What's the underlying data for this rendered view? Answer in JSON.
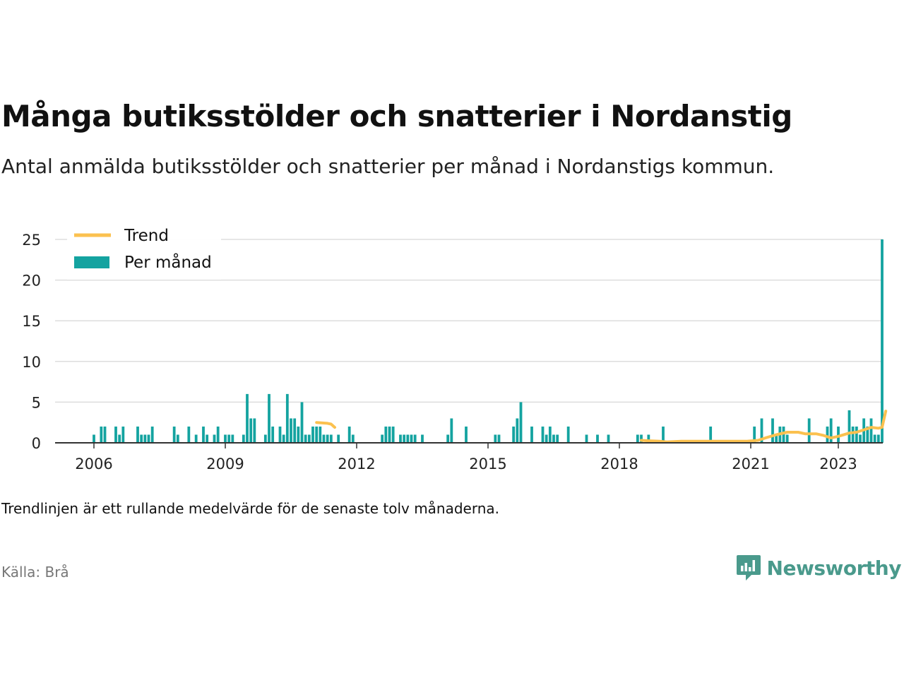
{
  "title": "Många butiksstölder och snatterier i Nordanstig",
  "subtitle": "Antal anmälda butiksstölder och snatterier per månad i Nordanstigs kommun.",
  "note": "Trendlinjen är ett rullande medelvärde för de senaste tolv månaderna.",
  "source": "Källa: Brå",
  "brand": {
    "name": "Newsworthy",
    "icon": "newsworthy-logo-icon",
    "color": "#4a9a8c"
  },
  "colors": {
    "bars": "#14a3a0",
    "trend": "#fbc14f",
    "grid": "#dddddd",
    "axis": "#333333"
  },
  "chart_data": {
    "type": "bar",
    "xlabel": "",
    "ylabel": "",
    "ylim": [
      0,
      25
    ],
    "yticks": [
      0,
      5,
      10,
      15,
      20,
      25
    ],
    "xticks": [
      "2006",
      "2009",
      "2012",
      "2015",
      "2018",
      "2021",
      "2023"
    ],
    "grid": true,
    "legend": {
      "position": "top-left",
      "entries": [
        "Trend",
        "Per månad"
      ]
    },
    "series": [
      {
        "name": "Per månad",
        "type": "bar",
        "points": [
          [
            "2006-01",
            1
          ],
          [
            "2006-03",
            2
          ],
          [
            "2006-04",
            2
          ],
          [
            "2006-07",
            2
          ],
          [
            "2006-08",
            1
          ],
          [
            "2006-09",
            2
          ],
          [
            "2007-01",
            2
          ],
          [
            "2007-02",
            1
          ],
          [
            "2007-03",
            1
          ],
          [
            "2007-04",
            1
          ],
          [
            "2007-05",
            2
          ],
          [
            "2007-11",
            2
          ],
          [
            "2007-12",
            1
          ],
          [
            "2008-03",
            2
          ],
          [
            "2008-05",
            1
          ],
          [
            "2008-07",
            2
          ],
          [
            "2008-08",
            1
          ],
          [
            "2008-10",
            1
          ],
          [
            "2008-11",
            2
          ],
          [
            "2009-01",
            1
          ],
          [
            "2009-02",
            1
          ],
          [
            "2009-03",
            1
          ],
          [
            "2009-06",
            1
          ],
          [
            "2009-07",
            6
          ],
          [
            "2009-08",
            3
          ],
          [
            "2009-09",
            3
          ],
          [
            "2009-12",
            1
          ],
          [
            "2010-01",
            6
          ],
          [
            "2010-02",
            2
          ],
          [
            "2010-04",
            2
          ],
          [
            "2010-05",
            1
          ],
          [
            "2010-06",
            6
          ],
          [
            "2010-07",
            3
          ],
          [
            "2010-08",
            3
          ],
          [
            "2010-09",
            2
          ],
          [
            "2010-10",
            5
          ],
          [
            "2010-11",
            1
          ],
          [
            "2010-12",
            1
          ],
          [
            "2011-01",
            2
          ],
          [
            "2011-02",
            2
          ],
          [
            "2011-03",
            2
          ],
          [
            "2011-04",
            1
          ],
          [
            "2011-05",
            1
          ],
          [
            "2011-06",
            1
          ],
          [
            "2011-08",
            1
          ],
          [
            "2011-11",
            2
          ],
          [
            "2011-12",
            1
          ],
          [
            "2012-08",
            1
          ],
          [
            "2012-09",
            2
          ],
          [
            "2012-10",
            2
          ],
          [
            "2012-11",
            2
          ],
          [
            "2013-01",
            1
          ],
          [
            "2013-02",
            1
          ],
          [
            "2013-03",
            1
          ],
          [
            "2013-04",
            1
          ],
          [
            "2013-05",
            1
          ],
          [
            "2013-07",
            1
          ],
          [
            "2014-02",
            1
          ],
          [
            "2014-03",
            3
          ],
          [
            "2014-07",
            2
          ],
          [
            "2015-03",
            1
          ],
          [
            "2015-04",
            1
          ],
          [
            "2015-08",
            2
          ],
          [
            "2015-09",
            3
          ],
          [
            "2015-10",
            5
          ],
          [
            "2016-01",
            2
          ],
          [
            "2016-04",
            2
          ],
          [
            "2016-05",
            1
          ],
          [
            "2016-06",
            2
          ],
          [
            "2016-07",
            1
          ],
          [
            "2016-08",
            1
          ],
          [
            "2016-11",
            2
          ],
          [
            "2017-04",
            1
          ],
          [
            "2017-07",
            1
          ],
          [
            "2017-10",
            1
          ],
          [
            "2018-06",
            1
          ],
          [
            "2018-07",
            1
          ],
          [
            "2018-09",
            1
          ],
          [
            "2019-01",
            2
          ],
          [
            "2020-02",
            2
          ],
          [
            "2021-02",
            2
          ],
          [
            "2021-04",
            3
          ],
          [
            "2021-07",
            3
          ],
          [
            "2021-08",
            1
          ],
          [
            "2021-09",
            2
          ],
          [
            "2021-10",
            2
          ],
          [
            "2021-11",
            1
          ],
          [
            "2022-05",
            3
          ],
          [
            "2022-10",
            2
          ],
          [
            "2022-11",
            3
          ],
          [
            "2023-01",
            2
          ],
          [
            "2023-04",
            4
          ],
          [
            "2023-05",
            2
          ],
          [
            "2023-06",
            2
          ],
          [
            "2023-07",
            1
          ],
          [
            "2023-08",
            3
          ],
          [
            "2023-09",
            2
          ],
          [
            "2023-10",
            3
          ],
          [
            "2023-11",
            1
          ],
          [
            "2023-12",
            1
          ],
          [
            "2024-01",
            25
          ]
        ]
      },
      {
        "name": "Trend",
        "type": "line",
        "segments": [
          [
            [
              "2011-02",
              2.5
            ],
            [
              "2011-05",
              2.4
            ],
            [
              "2011-06",
              2.3
            ],
            [
              "2011-07",
              1.9
            ]
          ],
          [
            [
              "2018-07",
              0.3
            ],
            [
              "2018-09",
              0.25
            ],
            [
              "2018-12",
              0.2
            ],
            [
              "2019-02",
              0.1
            ],
            [
              "2019-06",
              0.2
            ],
            [
              "2020-01",
              0.2
            ],
            [
              "2020-06",
              0.2
            ],
            [
              "2020-12",
              0.2
            ],
            [
              "2021-03",
              0.3
            ],
            [
              "2021-05",
              0.6
            ],
            [
              "2021-08",
              1
            ],
            [
              "2021-11",
              1.3
            ],
            [
              "2022-02",
              1.3
            ],
            [
              "2022-04",
              1.1
            ],
            [
              "2022-07",
              1.1
            ],
            [
              "2022-09",
              0.9
            ],
            [
              "2022-11",
              0.6
            ],
            [
              "2023-01",
              0.8
            ],
            [
              "2023-04",
              1.2
            ],
            [
              "2023-06",
              1.3
            ],
            [
              "2023-08",
              1.6
            ],
            [
              "2023-10",
              1.9
            ],
            [
              "2023-12",
              1.8
            ],
            [
              "2024-01",
              1.9
            ],
            [
              "2024-02",
              3.9
            ]
          ]
        ]
      }
    ]
  }
}
